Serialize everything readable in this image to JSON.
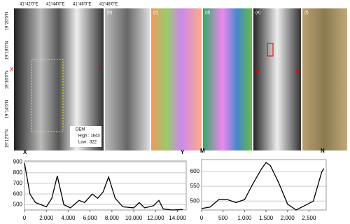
{
  "figure": {
    "lon_labels": [
      "41°42'0\"E",
      "41°44'0\"E",
      "41°46'0\"E",
      "41°48'0\"E"
    ],
    "lat_labels": [
      "19°20'0\"N",
      "19°18'0\"N",
      "19°16'0\"N",
      "19°14'0\"N",
      "19°12'0\"N"
    ],
    "panels": [
      "(b)",
      "(c)",
      "(d)",
      "(e)",
      "(f)"
    ],
    "legend": {
      "title": "DEM",
      "high": "High : 1643",
      "low": "Low : 322"
    },
    "map_marks": [
      "X",
      "Y",
      "M",
      "N"
    ]
  },
  "chart_data": [
    {
      "type": "line",
      "start_label": "X",
      "end_label": "Y",
      "color": "#000000",
      "grid": true,
      "x": [
        0,
        500,
        1000,
        1500,
        2000,
        2500,
        3000,
        3600,
        4200,
        5000,
        5500,
        6200,
        6700,
        7200,
        7700,
        8300,
        9000,
        10000,
        10500,
        11000,
        11800,
        12300,
        12700,
        13500,
        14500
      ],
      "values": [
        890,
        600,
        520,
        500,
        480,
        560,
        770,
        500,
        470,
        540,
        520,
        600,
        560,
        620,
        760,
        560,
        480,
        470,
        520,
        470,
        490,
        540,
        460,
        450,
        455
      ],
      "xlim": [
        0,
        14800
      ],
      "ylim": [
        450,
        910
      ],
      "xticks": [
        0,
        {
          "value": 2000,
          "label": "2,000"
        },
        {
          "value": 4000,
          "label": "4,000"
        },
        {
          "value": 6000,
          "label": "6,000"
        },
        {
          "value": 8000,
          "label": "8,000"
        },
        {
          "value": 10000,
          "label": "10,000"
        },
        {
          "value": 12000,
          "label": "12,000"
        },
        {
          "value": 14000,
          "label": "14,000"
        }
      ],
      "yticks": [
        500,
        600,
        700,
        800,
        900
      ]
    },
    {
      "type": "line",
      "start_label": "M",
      "end_label": "N",
      "color": "#000000",
      "grid": true,
      "x": [
        0,
        200,
        400,
        600,
        800,
        1000,
        1200,
        1400,
        1500,
        1600,
        1800,
        2000,
        2200,
        2400,
        2600,
        2800,
        2850
      ],
      "values": [
        475,
        480,
        505,
        505,
        495,
        505,
        560,
        610,
        630,
        620,
        560,
        490,
        470,
        485,
        500,
        600,
        610
      ],
      "xlim": [
        0,
        2900
      ],
      "ylim": [
        470,
        640
      ],
      "xticks": [
        0,
        500,
        {
          "value": 1000,
          "label": "1,000"
        },
        {
          "value": 1500,
          "label": "1,500"
        },
        {
          "value": 2000,
          "label": "2,000"
        },
        {
          "value": 2500,
          "label": "2,500"
        }
      ],
      "yticks": [
        500,
        550,
        600
      ]
    }
  ]
}
